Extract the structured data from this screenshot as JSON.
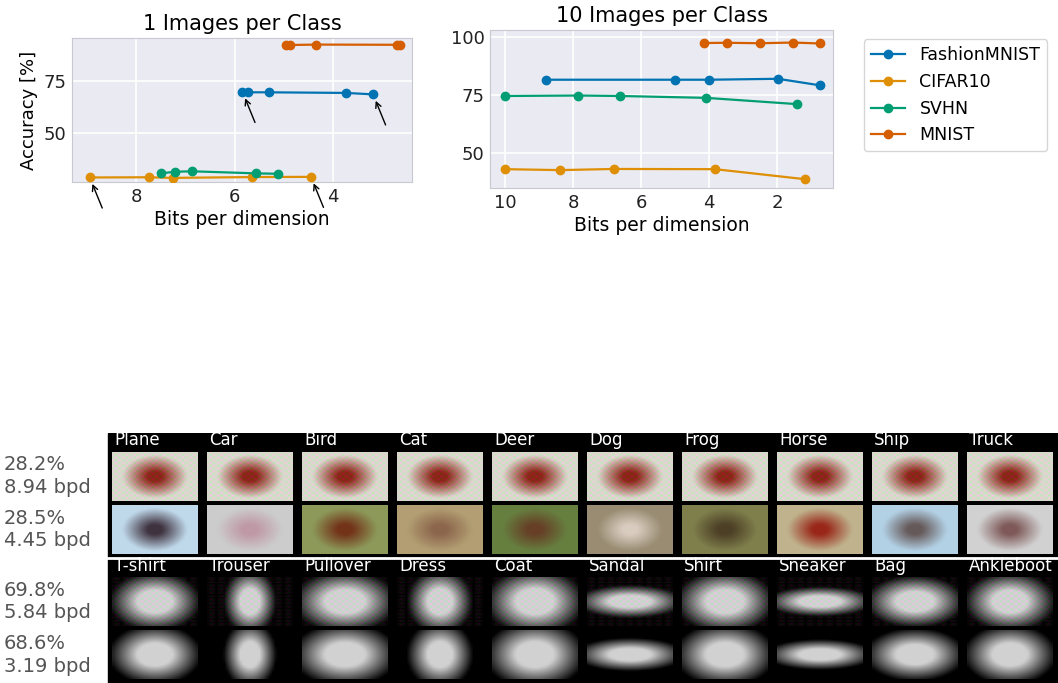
{
  "chart_data": [
    {
      "type": "line",
      "title": "1 Images per Class",
      "x_label": "Bits per dimension",
      "y_label": "Accuracy [%]",
      "xlim": [
        9.3,
        2.4
      ],
      "ylim": [
        26,
        96
      ],
      "xticks": [
        8,
        6,
        4
      ],
      "yticks": [
        50,
        75
      ],
      "grid": true,
      "marker": "o",
      "series": [
        {
          "name": "FashionMNIST",
          "color": "#0173b2",
          "x": [
            5.84,
            5.72,
            5.3,
            3.74,
            3.19
          ],
          "values": [
            69.8,
            69.6,
            69.6,
            69.3,
            68.6
          ]
        },
        {
          "name": "CIFAR10",
          "color": "#de8f05",
          "x": [
            8.94,
            7.74,
            7.26,
            5.64,
            4.45
          ],
          "values": [
            28.2,
            28.3,
            28.0,
            28.4,
            28.5
          ]
        },
        {
          "name": "SVHN",
          "color": "#029e73",
          "x": [
            7.5,
            7.2,
            6.86,
            5.56,
            5.12
          ],
          "values": [
            30.2,
            31.0,
            31.2,
            30.2,
            30.0
          ]
        },
        {
          "name": "MNIST",
          "color": "#d55e00",
          "x": [
            4.96,
            4.88,
            4.34,
            2.7,
            2.64
          ],
          "values": [
            92.5,
            92.6,
            92.8,
            92.7,
            92.6
          ]
        }
      ]
    },
    {
      "type": "line",
      "title": "10 Images per Class",
      "x_label": "Bits per dimension",
      "xlim": [
        10.45,
        0.35
      ],
      "ylim": [
        35,
        103
      ],
      "xticks": [
        10,
        8,
        6,
        4,
        2
      ],
      "yticks": [
        50,
        75,
        100
      ],
      "grid": true,
      "marker": "o",
      "legend": "upper right",
      "series": [
        {
          "name": "FashionMNIST",
          "color": "#0173b2",
          "x": [
            8.79,
            5.0,
            4.0,
            1.97,
            0.74
          ],
          "values": [
            81.6,
            81.6,
            81.6,
            82.0,
            79.2
          ]
        },
        {
          "name": "CIFAR10",
          "color": "#de8f05",
          "x": [
            10.0,
            8.38,
            6.79,
            3.82,
            1.18
          ],
          "values": [
            43.1,
            42.7,
            43.2,
            43.1,
            38.8
          ]
        },
        {
          "name": "SVHN",
          "color": "#029e73",
          "x": [
            10.0,
            7.85,
            6.62,
            4.09,
            1.41
          ],
          "values": [
            74.6,
            74.8,
            74.6,
            73.8,
            71.1
          ]
        },
        {
          "name": "MNIST",
          "color": "#d55e00",
          "x": [
            4.15,
            3.47,
            2.5,
            1.53,
            0.74
          ],
          "values": [
            97.4,
            97.5,
            97.3,
            97.6,
            97.2
          ]
        }
      ]
    }
  ],
  "image_panels": [
    {
      "classes": [
        "Plane",
        "Car",
        "Bird",
        "Cat",
        "Deer",
        "Dog",
        "Frog",
        "Horse",
        "Ship",
        "Truck"
      ],
      "rows": [
        {
          "accuracy": "28.2%",
          "bpd": "8.94 bpd"
        },
        {
          "accuracy": "28.5%",
          "bpd": "4.45 bpd"
        }
      ]
    },
    {
      "classes": [
        "T-shirt",
        "Trouser",
        "Pullover",
        "Dress",
        "Coat",
        "Sandal",
        "Shirt",
        "Sneaker",
        "Bag",
        "Ankleboot"
      ],
      "rows": [
        {
          "accuracy": "69.8%",
          "bpd": "5.84 bpd"
        },
        {
          "accuracy": "68.6%",
          "bpd": "3.19 bpd"
        }
      ]
    }
  ]
}
